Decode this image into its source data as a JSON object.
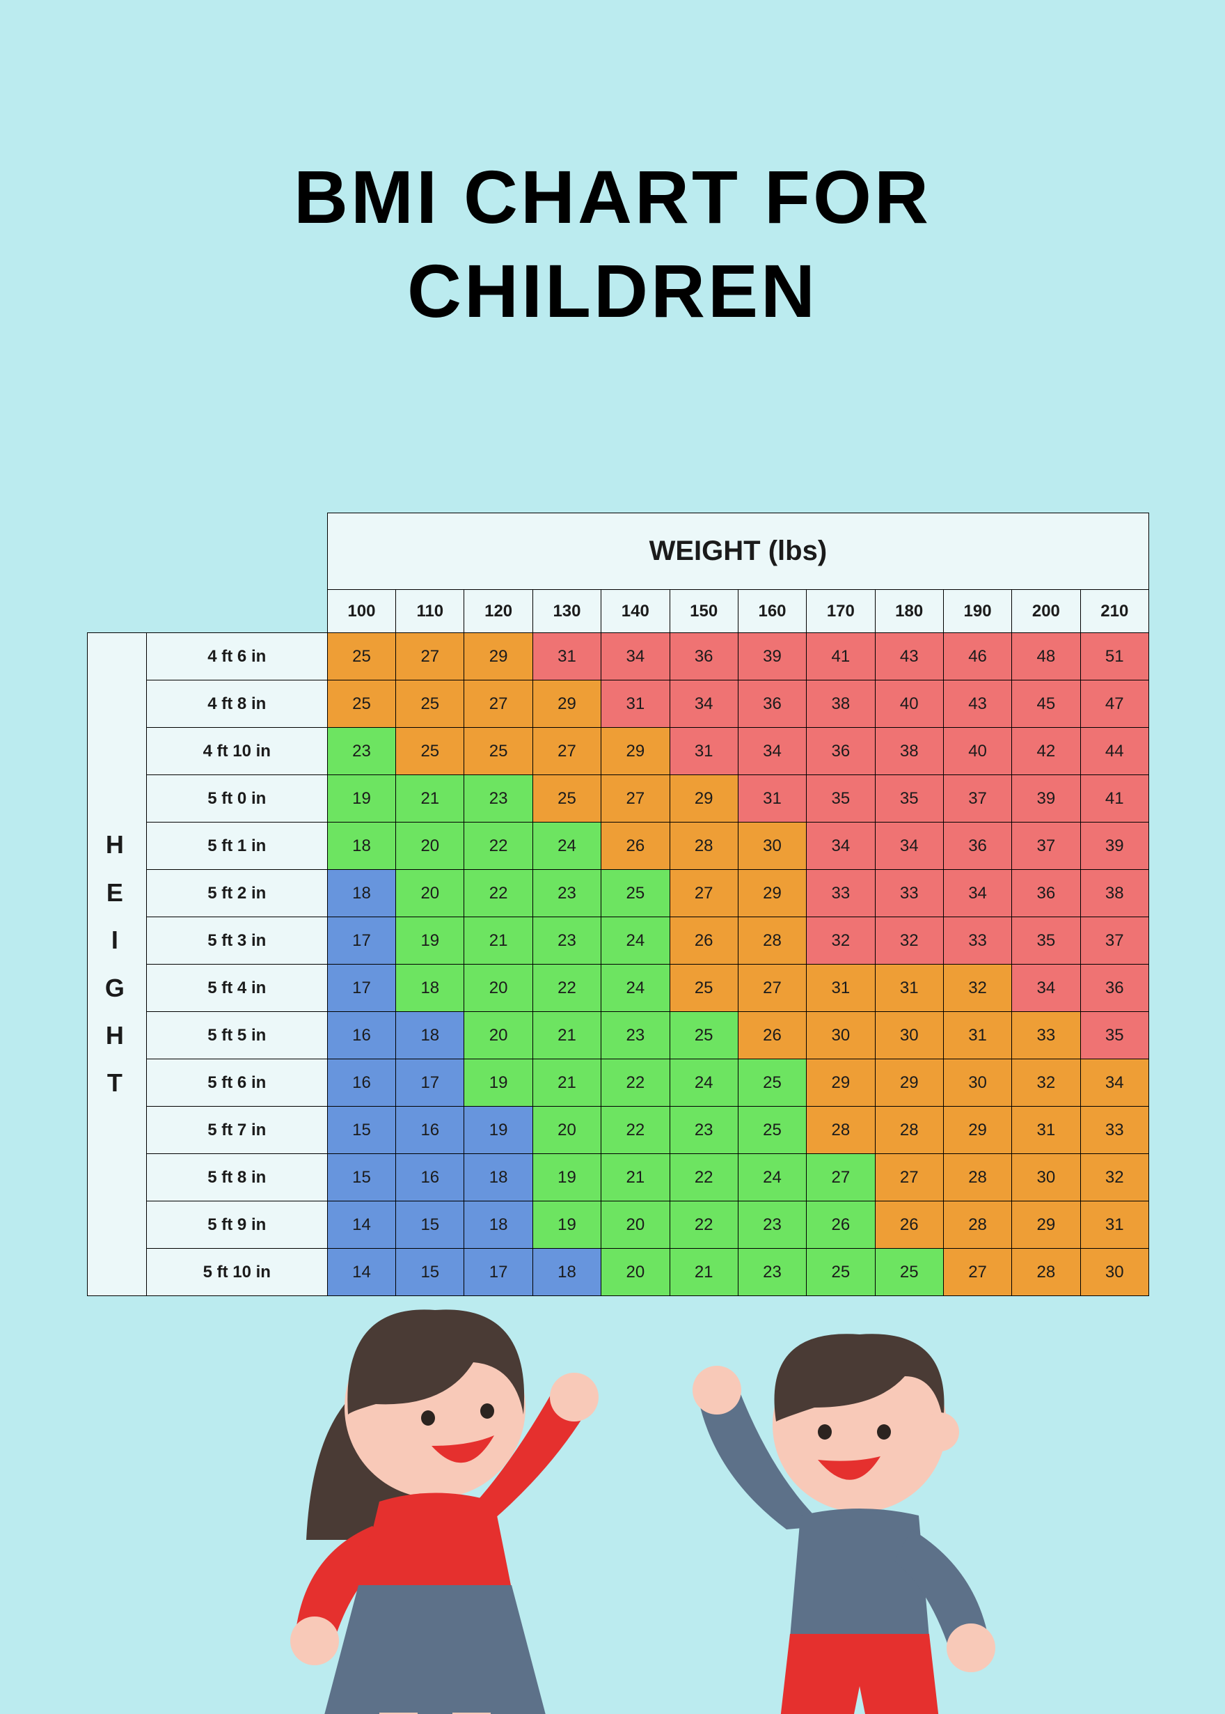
{
  "background_color": "#bbebef",
  "title_line1": "BMI CHART FOR",
  "title_line2": "CHILDREN",
  "title_color": "#000000",
  "table": {
    "header_bg": "#ecf8f9",
    "weight_title": "WEIGHT (lbs)",
    "height_title": "H\nE\nI\nG\nH\nT",
    "weights": [
      "100",
      "110",
      "120",
      "130",
      "140",
      "150",
      "160",
      "170",
      "180",
      "190",
      "200",
      "210"
    ],
    "heights": [
      "4 ft 6 in",
      "4 ft 8 in",
      "4 ft 10 in",
      "5 ft 0 in",
      "5 ft 1 in",
      "5 ft 2 in",
      "5 ft 3 in",
      "5 ft 4 in",
      "5 ft 5 in",
      "5 ft 6 in",
      "5 ft 7 in",
      "5 ft 8 in",
      "5 ft 9 in",
      "5 ft 10 in"
    ],
    "colors": {
      "blue": "#6795dd",
      "green": "#6de461",
      "orange": "#ee9e36",
      "red": "#ef7373"
    },
    "cells": [
      [
        {
          "v": "25",
          "c": "orange"
        },
        {
          "v": "27",
          "c": "orange"
        },
        {
          "v": "29",
          "c": "orange"
        },
        {
          "v": "31",
          "c": "red"
        },
        {
          "v": "34",
          "c": "red"
        },
        {
          "v": "36",
          "c": "red"
        },
        {
          "v": "39",
          "c": "red"
        },
        {
          "v": "41",
          "c": "red"
        },
        {
          "v": "43",
          "c": "red"
        },
        {
          "v": "46",
          "c": "red"
        },
        {
          "v": "48",
          "c": "red"
        },
        {
          "v": "51",
          "c": "red"
        }
      ],
      [
        {
          "v": "25",
          "c": "orange"
        },
        {
          "v": "25",
          "c": "orange"
        },
        {
          "v": "27",
          "c": "orange"
        },
        {
          "v": "29",
          "c": "orange"
        },
        {
          "v": "31",
          "c": "red"
        },
        {
          "v": "34",
          "c": "red"
        },
        {
          "v": "36",
          "c": "red"
        },
        {
          "v": "38",
          "c": "red"
        },
        {
          "v": "40",
          "c": "red"
        },
        {
          "v": "43",
          "c": "red"
        },
        {
          "v": "45",
          "c": "red"
        },
        {
          "v": "47",
          "c": "red"
        }
      ],
      [
        {
          "v": "23",
          "c": "green"
        },
        {
          "v": "25",
          "c": "orange"
        },
        {
          "v": "25",
          "c": "orange"
        },
        {
          "v": "27",
          "c": "orange"
        },
        {
          "v": "29",
          "c": "orange"
        },
        {
          "v": "31",
          "c": "red"
        },
        {
          "v": "34",
          "c": "red"
        },
        {
          "v": "36",
          "c": "red"
        },
        {
          "v": "38",
          "c": "red"
        },
        {
          "v": "40",
          "c": "red"
        },
        {
          "v": "42",
          "c": "red"
        },
        {
          "v": "44",
          "c": "red"
        }
      ],
      [
        {
          "v": "19",
          "c": "green"
        },
        {
          "v": "21",
          "c": "green"
        },
        {
          "v": "23",
          "c": "green"
        },
        {
          "v": "25",
          "c": "orange"
        },
        {
          "v": "27",
          "c": "orange"
        },
        {
          "v": "29",
          "c": "orange"
        },
        {
          "v": "31",
          "c": "red"
        },
        {
          "v": "35",
          "c": "red"
        },
        {
          "v": "35",
          "c": "red"
        },
        {
          "v": "37",
          "c": "red"
        },
        {
          "v": "39",
          "c": "red"
        },
        {
          "v": "41",
          "c": "red"
        }
      ],
      [
        {
          "v": "18",
          "c": "green"
        },
        {
          "v": "20",
          "c": "green"
        },
        {
          "v": "22",
          "c": "green"
        },
        {
          "v": "24",
          "c": "green"
        },
        {
          "v": "26",
          "c": "orange"
        },
        {
          "v": "28",
          "c": "orange"
        },
        {
          "v": "30",
          "c": "orange"
        },
        {
          "v": "34",
          "c": "red"
        },
        {
          "v": "34",
          "c": "red"
        },
        {
          "v": "36",
          "c": "red"
        },
        {
          "v": "37",
          "c": "red"
        },
        {
          "v": "39",
          "c": "red"
        }
      ],
      [
        {
          "v": "18",
          "c": "blue"
        },
        {
          "v": "20",
          "c": "green"
        },
        {
          "v": "22",
          "c": "green"
        },
        {
          "v": "23",
          "c": "green"
        },
        {
          "v": "25",
          "c": "green"
        },
        {
          "v": "27",
          "c": "orange"
        },
        {
          "v": "29",
          "c": "orange"
        },
        {
          "v": "33",
          "c": "red"
        },
        {
          "v": "33",
          "c": "red"
        },
        {
          "v": "34",
          "c": "red"
        },
        {
          "v": "36",
          "c": "red"
        },
        {
          "v": "38",
          "c": "red"
        }
      ],
      [
        {
          "v": "17",
          "c": "blue"
        },
        {
          "v": "19",
          "c": "green"
        },
        {
          "v": "21",
          "c": "green"
        },
        {
          "v": "23",
          "c": "green"
        },
        {
          "v": "24",
          "c": "green"
        },
        {
          "v": "26",
          "c": "orange"
        },
        {
          "v": "28",
          "c": "orange"
        },
        {
          "v": "32",
          "c": "red"
        },
        {
          "v": "32",
          "c": "red"
        },
        {
          "v": "33",
          "c": "red"
        },
        {
          "v": "35",
          "c": "red"
        },
        {
          "v": "37",
          "c": "red"
        }
      ],
      [
        {
          "v": "17",
          "c": "blue"
        },
        {
          "v": "18",
          "c": "green"
        },
        {
          "v": "20",
          "c": "green"
        },
        {
          "v": "22",
          "c": "green"
        },
        {
          "v": "24",
          "c": "green"
        },
        {
          "v": "25",
          "c": "orange"
        },
        {
          "v": "27",
          "c": "orange"
        },
        {
          "v": "31",
          "c": "orange"
        },
        {
          "v": "31",
          "c": "orange"
        },
        {
          "v": "32",
          "c": "orange"
        },
        {
          "v": "34",
          "c": "red"
        },
        {
          "v": "36",
          "c": "red"
        }
      ],
      [
        {
          "v": "16",
          "c": "blue"
        },
        {
          "v": "18",
          "c": "blue"
        },
        {
          "v": "20",
          "c": "green"
        },
        {
          "v": "21",
          "c": "green"
        },
        {
          "v": "23",
          "c": "green"
        },
        {
          "v": "25",
          "c": "green"
        },
        {
          "v": "26",
          "c": "orange"
        },
        {
          "v": "30",
          "c": "orange"
        },
        {
          "v": "30",
          "c": "orange"
        },
        {
          "v": "31",
          "c": "orange"
        },
        {
          "v": "33",
          "c": "orange"
        },
        {
          "v": "35",
          "c": "red"
        }
      ],
      [
        {
          "v": "16",
          "c": "blue"
        },
        {
          "v": "17",
          "c": "blue"
        },
        {
          "v": "19",
          "c": "green"
        },
        {
          "v": "21",
          "c": "green"
        },
        {
          "v": "22",
          "c": "green"
        },
        {
          "v": "24",
          "c": "green"
        },
        {
          "v": "25",
          "c": "green"
        },
        {
          "v": "29",
          "c": "orange"
        },
        {
          "v": "29",
          "c": "orange"
        },
        {
          "v": "30",
          "c": "orange"
        },
        {
          "v": "32",
          "c": "orange"
        },
        {
          "v": "34",
          "c": "orange"
        }
      ],
      [
        {
          "v": "15",
          "c": "blue"
        },
        {
          "v": "16",
          "c": "blue"
        },
        {
          "v": "19",
          "c": "blue"
        },
        {
          "v": "20",
          "c": "green"
        },
        {
          "v": "22",
          "c": "green"
        },
        {
          "v": "23",
          "c": "green"
        },
        {
          "v": "25",
          "c": "green"
        },
        {
          "v": "28",
          "c": "orange"
        },
        {
          "v": "28",
          "c": "orange"
        },
        {
          "v": "29",
          "c": "orange"
        },
        {
          "v": "31",
          "c": "orange"
        },
        {
          "v": "33",
          "c": "orange"
        }
      ],
      [
        {
          "v": "15",
          "c": "blue"
        },
        {
          "v": "16",
          "c": "blue"
        },
        {
          "v": "18",
          "c": "blue"
        },
        {
          "v": "19",
          "c": "green"
        },
        {
          "v": "21",
          "c": "green"
        },
        {
          "v": "22",
          "c": "green"
        },
        {
          "v": "24",
          "c": "green"
        },
        {
          "v": "27",
          "c": "green"
        },
        {
          "v": "27",
          "c": "orange"
        },
        {
          "v": "28",
          "c": "orange"
        },
        {
          "v": "30",
          "c": "orange"
        },
        {
          "v": "32",
          "c": "orange"
        }
      ],
      [
        {
          "v": "14",
          "c": "blue"
        },
        {
          "v": "15",
          "c": "blue"
        },
        {
          "v": "18",
          "c": "blue"
        },
        {
          "v": "19",
          "c": "green"
        },
        {
          "v": "20",
          "c": "green"
        },
        {
          "v": "22",
          "c": "green"
        },
        {
          "v": "23",
          "c": "green"
        },
        {
          "v": "26",
          "c": "green"
        },
        {
          "v": "26",
          "c": "orange"
        },
        {
          "v": "28",
          "c": "orange"
        },
        {
          "v": "29",
          "c": "orange"
        },
        {
          "v": "31",
          "c": "orange"
        }
      ],
      [
        {
          "v": "14",
          "c": "blue"
        },
        {
          "v": "15",
          "c": "blue"
        },
        {
          "v": "17",
          "c": "blue"
        },
        {
          "v": "18",
          "c": "blue"
        },
        {
          "v": "20",
          "c": "green"
        },
        {
          "v": "21",
          "c": "green"
        },
        {
          "v": "23",
          "c": "green"
        },
        {
          "v": "25",
          "c": "green"
        },
        {
          "v": "25",
          "c": "green"
        },
        {
          "v": "27",
          "c": "orange"
        },
        {
          "v": "28",
          "c": "orange"
        },
        {
          "v": "30",
          "c": "orange"
        }
      ]
    ]
  },
  "illustration": {
    "skin": "#f8c9b8",
    "hair": "#4a3b35",
    "girl_top": "#e5302e",
    "girl_skirt": "#5d7189",
    "boy_top": "#5d7189",
    "boy_pants": "#e5302e",
    "mouth": "#e5302e",
    "eye": "#2c2420"
  }
}
